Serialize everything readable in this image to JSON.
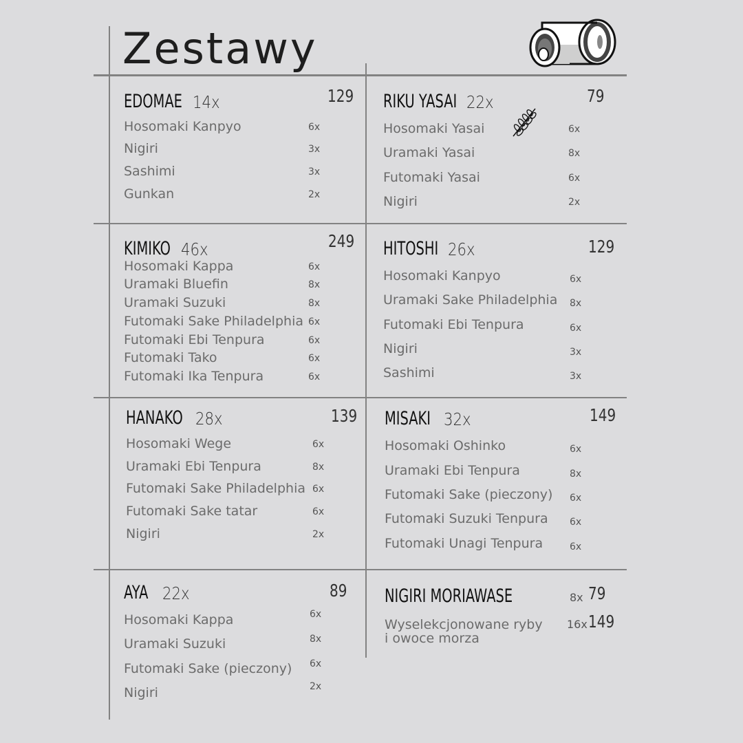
{
  "heading": "Zestawy",
  "icons": {
    "logo": "sushi-roll-icon",
    "vegan": "leaf-branch-icon"
  },
  "sections": [
    {
      "name": "EDOMAE",
      "count": "14x",
      "price": "129",
      "items": [
        {
          "name": "Hosomaki Kanpyo",
          "qty": "6x"
        },
        {
          "name": "Nigiri",
          "qty": "3x"
        },
        {
          "name": "Sashimi",
          "qty": "3x"
        },
        {
          "name": "Gunkan",
          "qty": "2x"
        }
      ]
    },
    {
      "name": "RIKU YASAI",
      "count": "22x",
      "price": "79",
      "items": [
        {
          "name": "Hosomaki Yasai",
          "qty": "6x"
        },
        {
          "name": "Uramaki Yasai",
          "qty": "8x"
        },
        {
          "name": "Futomaki Yasai",
          "qty": "6x"
        },
        {
          "name": "Nigiri",
          "qty": "2x"
        }
      ]
    },
    {
      "name": "KIMIKO",
      "count": "46x",
      "price": "249",
      "items": [
        {
          "name": "Hosomaki Kappa",
          "qty": "6x"
        },
        {
          "name": "Uramaki Bluefin",
          "qty": "8x"
        },
        {
          "name": "Uramaki Suzuki",
          "qty": "8x"
        },
        {
          "name": "Futomaki Sake Philadelphia",
          "qty": "6x"
        },
        {
          "name": "Futomaki Ebi Tenpura",
          "qty": "6x"
        },
        {
          "name": "Futomaki Tako",
          "qty": "6x"
        },
        {
          "name": "Futomaki Ika Tenpura",
          "qty": "6x"
        }
      ]
    },
    {
      "name": "HITOSHI",
      "count": "26x",
      "price": "129",
      "items": [
        {
          "name": "Hosomaki Kanpyo",
          "qty": "6x"
        },
        {
          "name": "Uramaki Sake Philadelphia",
          "qty": "8x"
        },
        {
          "name": "Futomaki Ebi Tenpura",
          "qty": "6x"
        },
        {
          "name": "Nigiri",
          "qty": "3x"
        },
        {
          "name": "Sashimi",
          "qty": "3x"
        }
      ]
    },
    {
      "name": "HANAKO",
      "count": "28x",
      "price": "139",
      "items": [
        {
          "name": "Hosomaki Wege",
          "qty": "6x"
        },
        {
          "name": "Uramaki Ebi Tenpura",
          "qty": "8x"
        },
        {
          "name": "Futomaki Sake Philadelphia",
          "qty": "6x"
        },
        {
          "name": "Futomaki Sake tatar",
          "qty": "6x"
        },
        {
          "name": "Nigiri",
          "qty": "2x"
        }
      ]
    },
    {
      "name": "MISAKI",
      "count": "32x",
      "price": "149",
      "items": [
        {
          "name": "Hosomaki Oshinko",
          "qty": "6x"
        },
        {
          "name": "Uramaki Ebi Tenpura",
          "qty": "8x"
        },
        {
          "name": "Futomaki Sake (pieczony)",
          "qty": "6x"
        },
        {
          "name": "Futomaki Suzuki Tenpura",
          "qty": "6x"
        },
        {
          "name": "Futomaki Unagi Tenpura",
          "qty": "6x"
        }
      ]
    },
    {
      "name": "AYA",
      "count": "22x",
      "price": "89",
      "items": [
        {
          "name": "Hosomaki Kappa",
          "qty": "6x"
        },
        {
          "name": "Uramaki Suzuki",
          "qty": "8x"
        },
        {
          "name": "Futomaki Sake (pieczony)",
          "qty": "6x"
        },
        {
          "name": "Nigiri",
          "qty": "2x"
        }
      ]
    }
  ],
  "moriawase": {
    "name": "NIGIRI MORIAWASE",
    "description_line1": "Wyselekcjonowane ryby",
    "description_line2": "i  owoce morza",
    "options": [
      {
        "qty": "8x",
        "price": "79"
      },
      {
        "qty": "16x",
        "price": "149"
      }
    ]
  }
}
